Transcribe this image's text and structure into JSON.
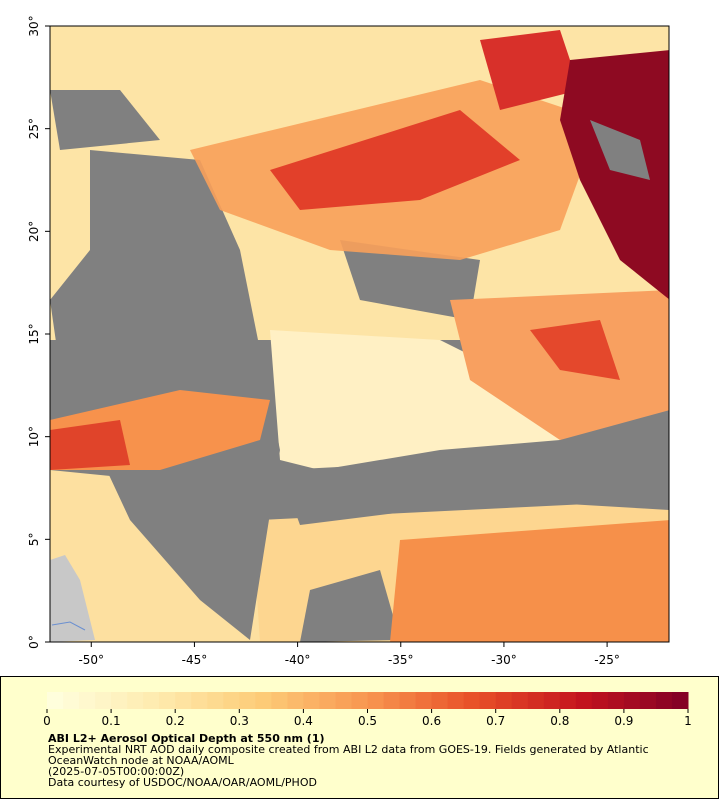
{
  "map": {
    "xlim": [
      -52,
      -22
    ],
    "ylim": [
      0,
      30
    ],
    "xticks": [
      {
        "value": -50,
        "label": "-50°"
      },
      {
        "value": -45,
        "label": "-45°"
      },
      {
        "value": -40,
        "label": "-40°"
      },
      {
        "value": -35,
        "label": "-35°"
      },
      {
        "value": -30,
        "label": "-30°"
      },
      {
        "value": -25,
        "label": "-25°"
      }
    ],
    "yticks": [
      {
        "value": 0,
        "label": "0°"
      },
      {
        "value": 5,
        "label": "5°"
      },
      {
        "value": 10,
        "label": "10°"
      },
      {
        "value": 15,
        "label": "15°"
      },
      {
        "value": 20,
        "label": "20°"
      },
      {
        "value": 25,
        "label": "25°"
      },
      {
        "value": 30,
        "label": "30°"
      }
    ]
  },
  "colorbar": {
    "range": [
      0,
      1
    ],
    "ticks": [
      0,
      0.1,
      0.2,
      0.3,
      0.4,
      0.5,
      0.6,
      0.7,
      0.8,
      0.9,
      1
    ]
  },
  "caption": {
    "title": "ABI L2+ Aerosol Optical Depth at 550 nm (1)",
    "lines": [
      "Experimental NRT AOD daily composite created from ABI L2 data from GOES-19. Fields generated by Atlantic",
      "OceanWatch node at NOAA/AOML",
      "(2025-07-05T00:00:00Z)",
      "Data courtesy of USDOC/NOAA/OAR/AOML/PHOD"
    ]
  }
}
